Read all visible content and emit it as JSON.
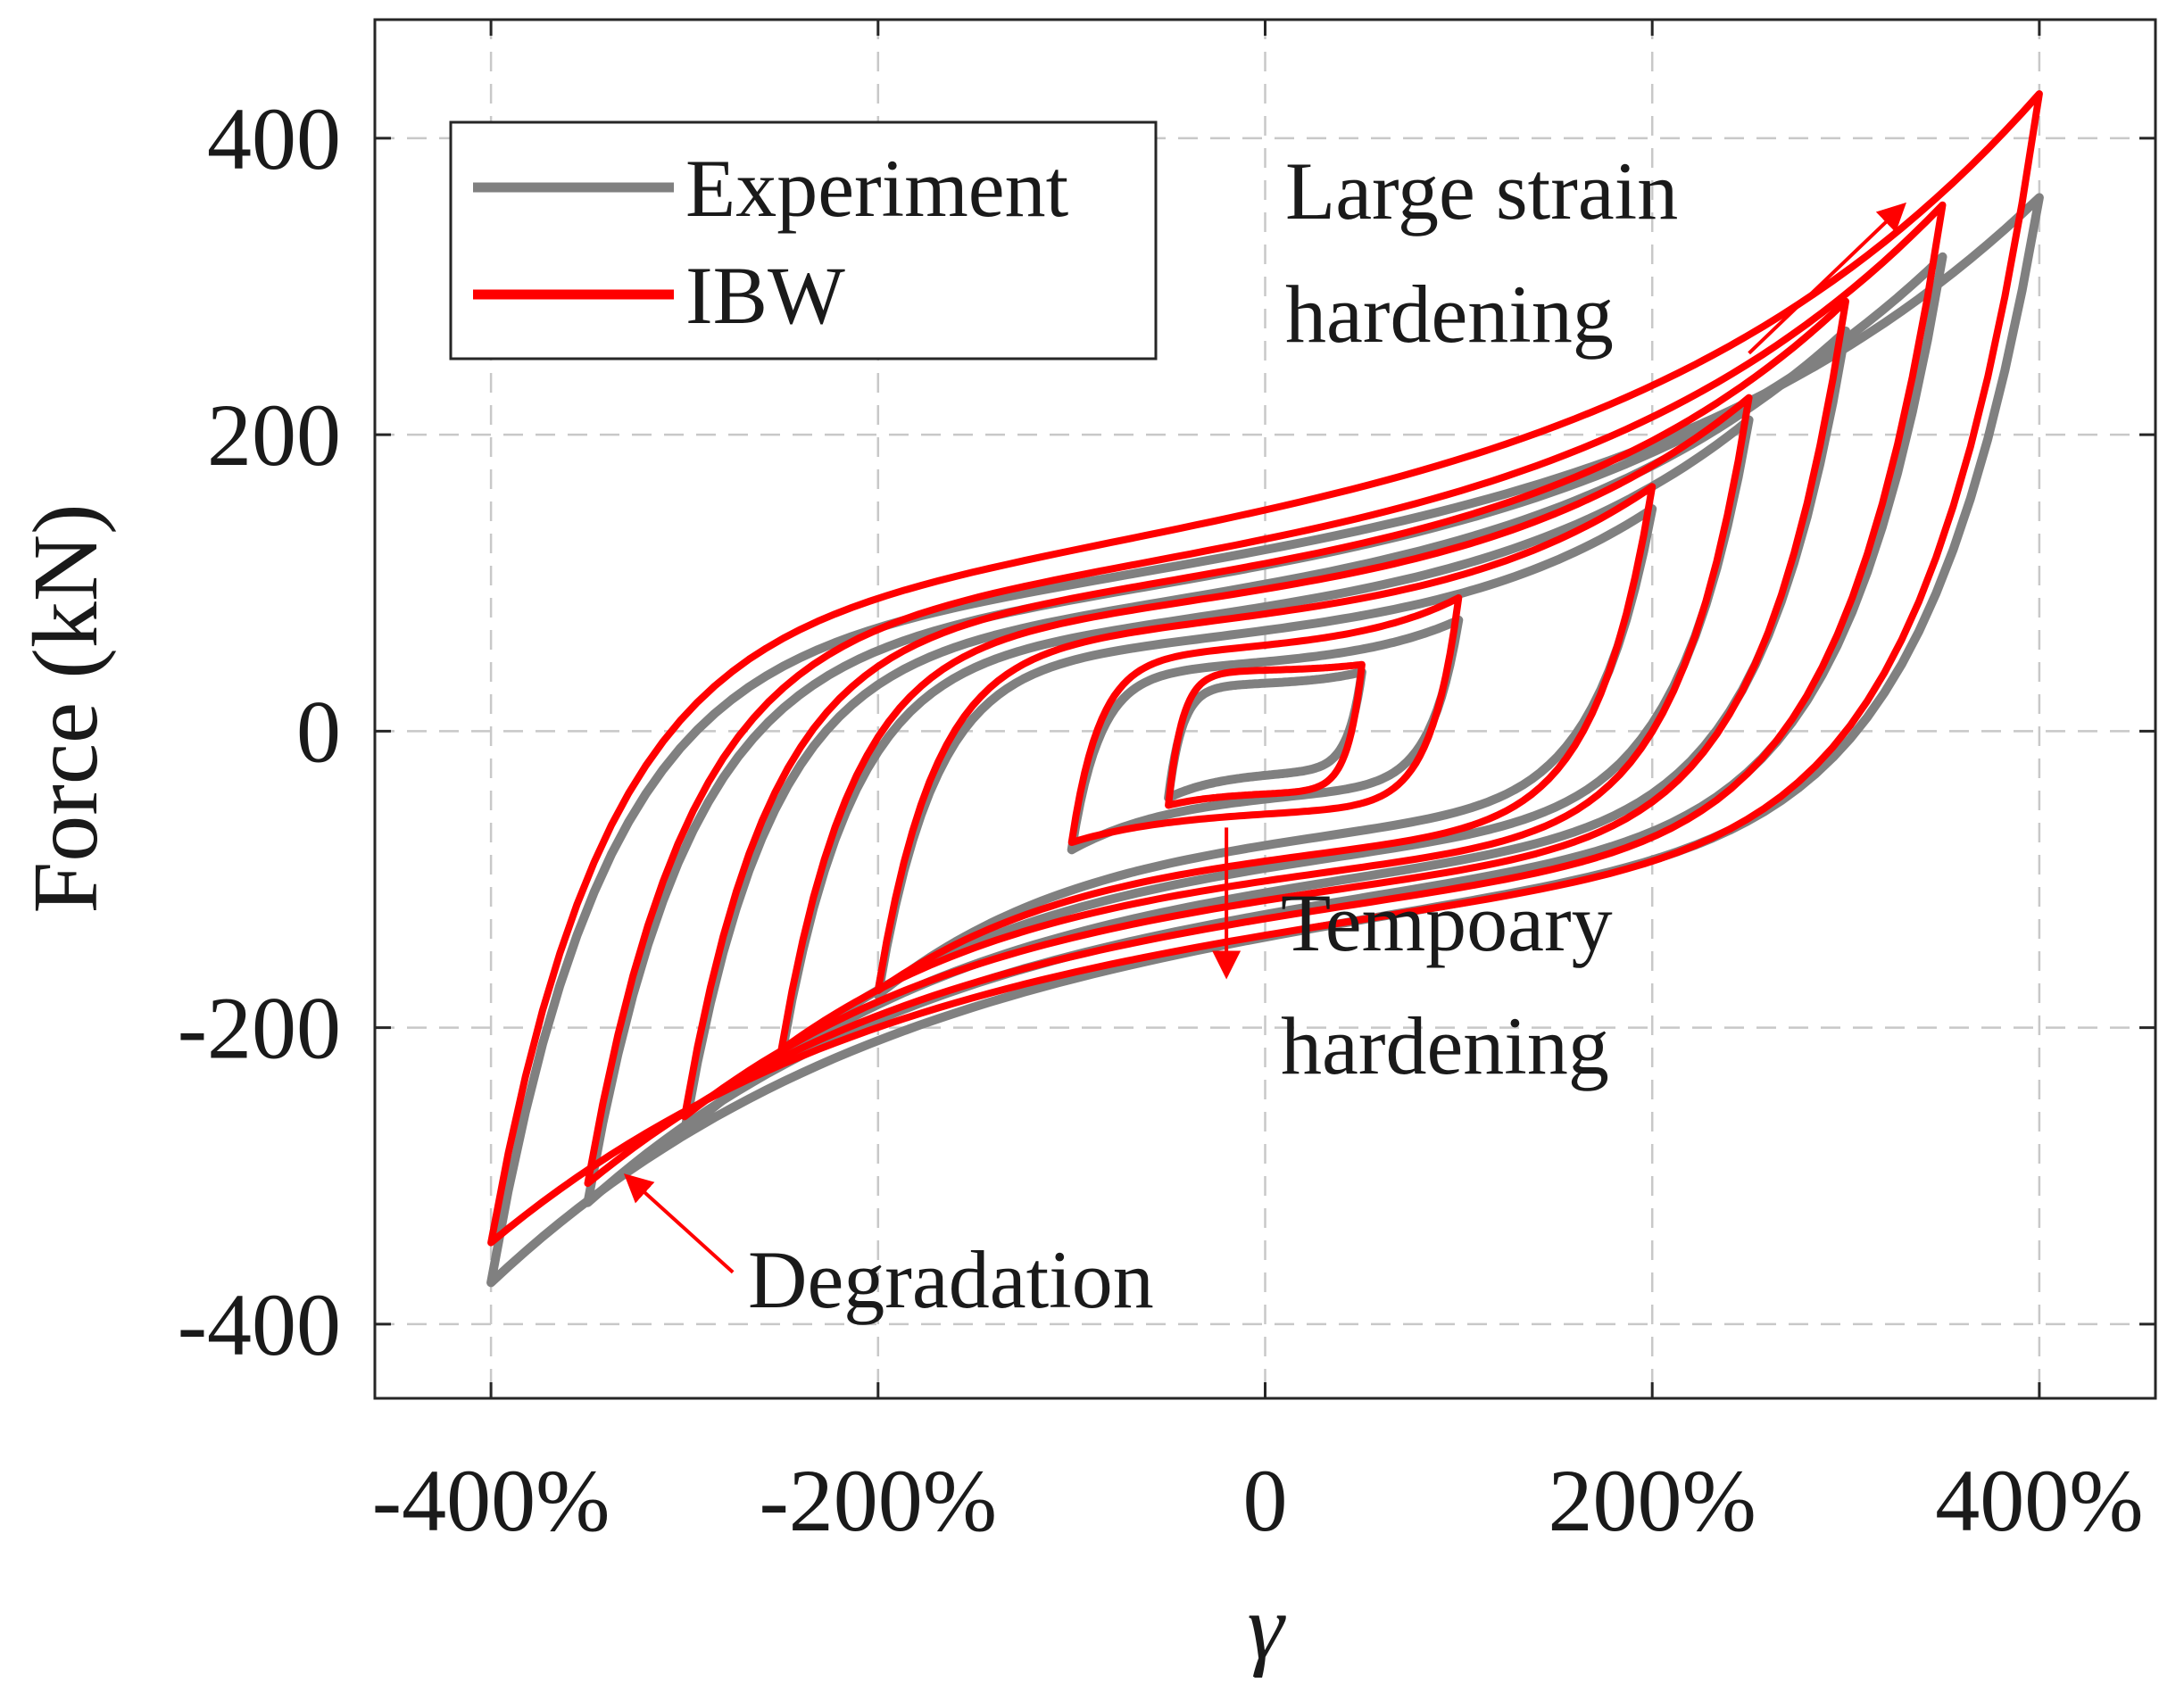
{
  "chart_data": {
    "type": "line",
    "title": "",
    "xlabel": "γ",
    "ylabel": "Force (kN)",
    "xlim": [
      -460,
      460
    ],
    "ylim": [
      -450,
      480
    ],
    "x_unit": "%",
    "x_ticks": [
      -400,
      -200,
      0,
      200,
      400
    ],
    "x_tick_labels": [
      "-400%",
      "-200%",
      "0",
      "200%",
      "400%"
    ],
    "y_ticks": [
      -400,
      -200,
      0,
      200,
      400
    ],
    "y_tick_labels": [
      "-400",
      "-200",
      "0",
      "200",
      "400"
    ],
    "grid": true,
    "grid_style": "dashed",
    "legend_position": "top-left",
    "legend": [
      {
        "label": "Experiment",
        "color": "#808080"
      },
      {
        "label": "IBW",
        "color": "#ff0000"
      }
    ],
    "series": [
      {
        "name": "Experiment",
        "color": "#808080",
        "cycles": [
          {
            "amplitude": 50,
            "f_pos": 40,
            "f_neg": -45,
            "f_zero_up": 30,
            "f_zero_down": -25
          },
          {
            "amplitude": 100,
            "f_pos": 75,
            "f_neg": -80,
            "f_zero_up": 38,
            "f_zero_down": -35
          },
          {
            "amplitude": 200,
            "f_pos": 150,
            "f_neg": -178,
            "f_zero_up": 42,
            "f_zero_down": -45
          },
          {
            "amplitude": 250,
            "f_pos": 210,
            "f_neg": -220,
            "f_zero_up": 44,
            "f_zero_down": -52
          },
          {
            "amplitude": 300,
            "f_pos": 270,
            "f_neg": -270,
            "f_zero_up": 45,
            "f_zero_down": -58
          },
          {
            "amplitude": 350,
            "f_pos": 320,
            "f_neg": -318,
            "f_zero_up": 46,
            "f_zero_down": -62
          },
          {
            "amplitude": 400,
            "f_pos": 360,
            "f_neg": -372,
            "f_zero_up": 47,
            "f_zero_down": -65
          }
        ]
      },
      {
        "name": "IBW",
        "color": "#ff0000",
        "cycles": [
          {
            "amplitude": 50,
            "f_pos": 45,
            "f_neg": -50,
            "f_zero_up": 40,
            "f_zero_down": -40
          },
          {
            "amplitude": 100,
            "f_pos": 90,
            "f_neg": -75,
            "f_zero_up": 48,
            "f_zero_down": -50
          },
          {
            "amplitude": 200,
            "f_pos": 165,
            "f_neg": -175,
            "f_zero_up": 52,
            "f_zero_down": -60
          },
          {
            "amplitude": 250,
            "f_pos": 225,
            "f_neg": -215,
            "f_zero_up": 55,
            "f_zero_down": -65
          },
          {
            "amplitude": 300,
            "f_pos": 290,
            "f_neg": -260,
            "f_zero_up": 57,
            "f_zero_down": -68
          },
          {
            "amplitude": 350,
            "f_pos": 355,
            "f_neg": -305,
            "f_zero_up": 58,
            "f_zero_down": -70
          },
          {
            "amplitude": 400,
            "f_pos": 430,
            "f_neg": -345,
            "f_zero_up": 60,
            "f_zero_down": -72
          }
        ]
      }
    ],
    "annotations": [
      {
        "id": "large-strain",
        "lines": [
          "Large strain",
          "hardening"
        ],
        "arrow_from": [
          250,
          255
        ],
        "arrow_to": [
          330,
          355
        ]
      },
      {
        "id": "temporary",
        "lines": [
          "Tempoary",
          "hardening"
        ],
        "arrow_from": [
          -20,
          -65
        ],
        "arrow_to": [
          -20,
          -165
        ]
      },
      {
        "id": "degradation",
        "lines": [
          "Degradation"
        ],
        "arrow_from": [
          -275,
          -365
        ],
        "arrow_to": [
          -330,
          -300
        ]
      }
    ]
  }
}
